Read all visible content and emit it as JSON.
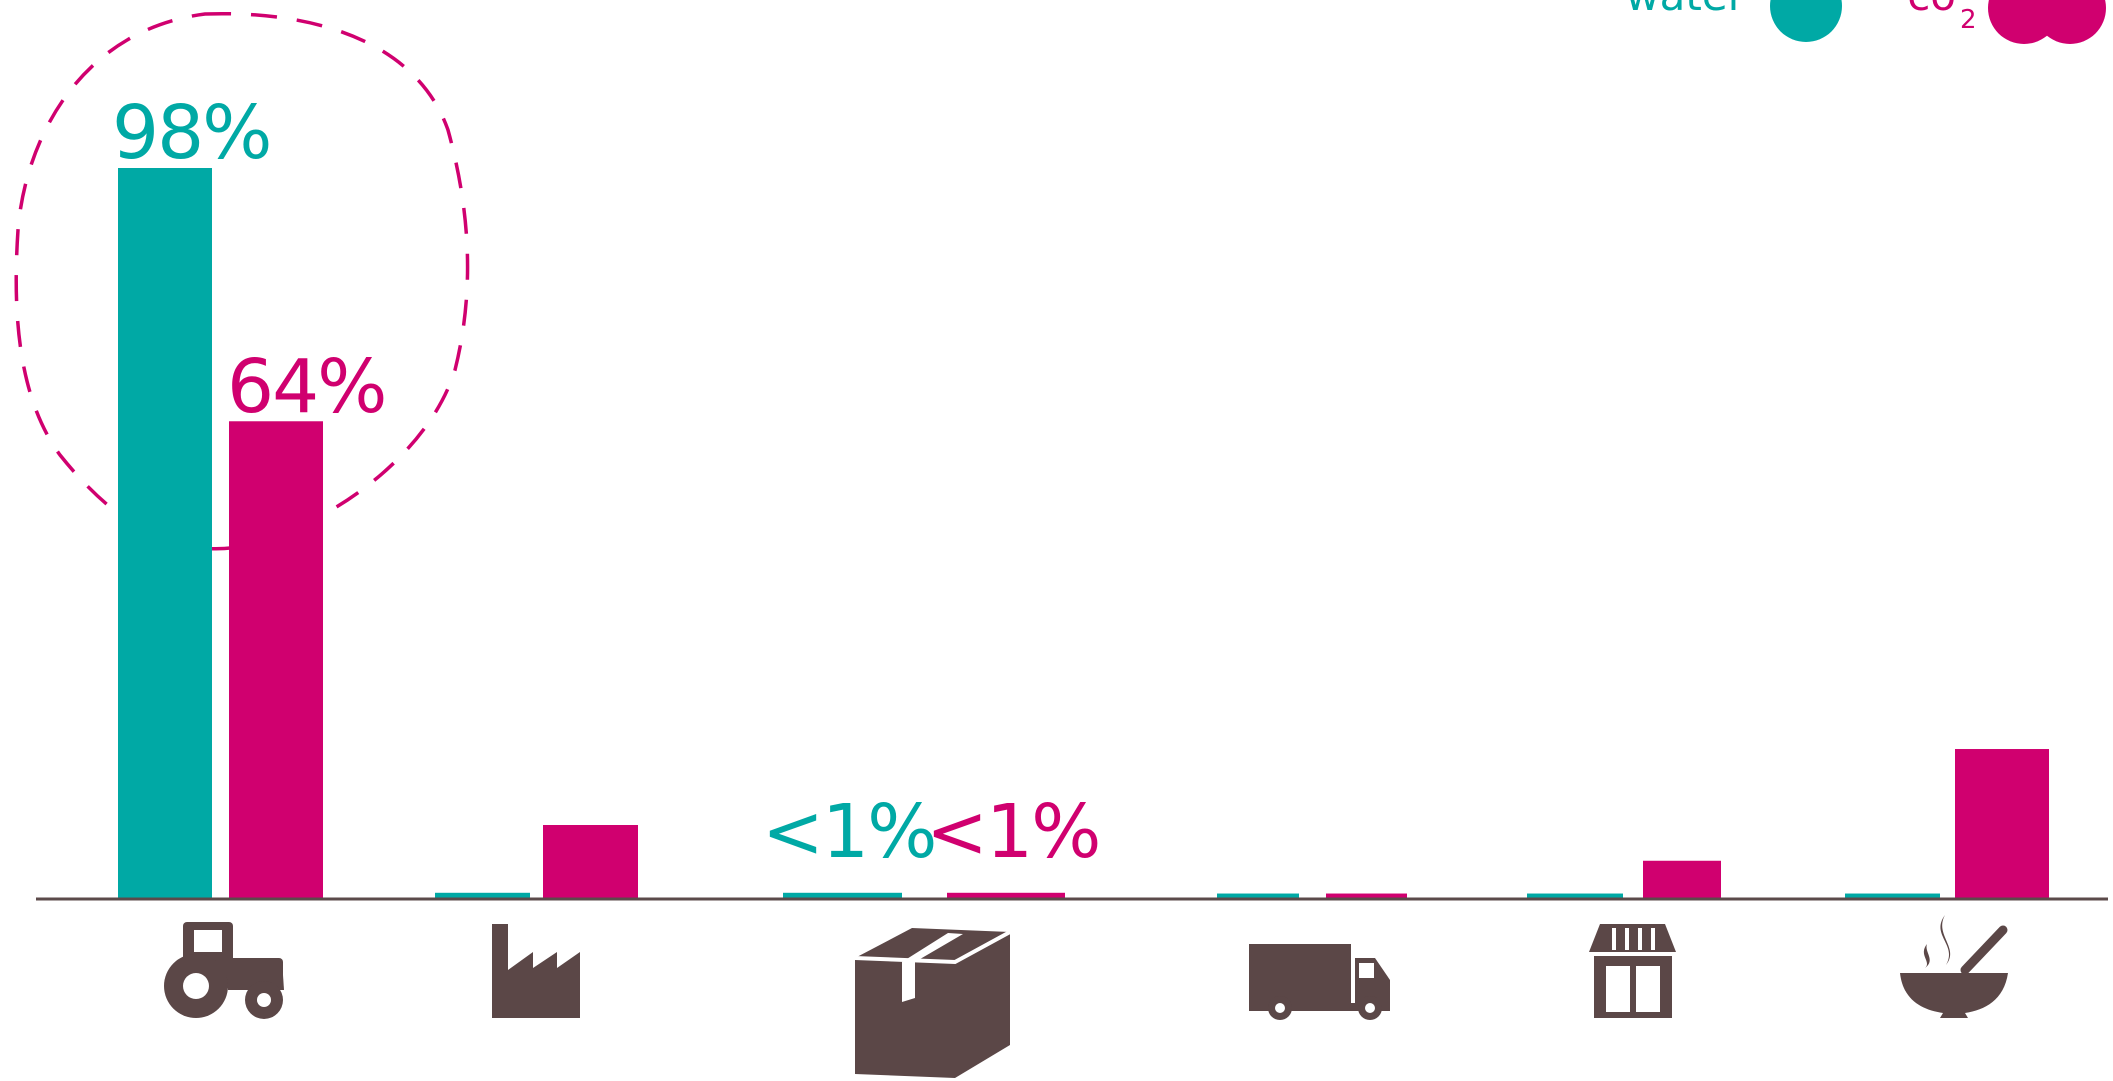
{
  "colors": {
    "water": "#00a9a5",
    "co2": "#d0006f",
    "axis": "#5b4a4a",
    "icon": "#5b4747"
  },
  "legend": {
    "water_label": "water",
    "co2_label": "co",
    "co2_sub": "2"
  },
  "chart_data": {
    "type": "bar",
    "categories": [
      "farm-tractor-icon",
      "factory-icon",
      "package-box-icon",
      "delivery-truck-icon",
      "store-icon",
      "food-bowl-icon"
    ],
    "series": [
      {
        "name": "water",
        "values": [
          98,
          0.7,
          0.7,
          0.6,
          0.6,
          0.6
        ],
        "labels": [
          "98%",
          "",
          "<1%",
          "",
          "",
          ""
        ]
      },
      {
        "name": "co2",
        "values": [
          64,
          9.8,
          0.7,
          0.6,
          5,
          20
        ],
        "labels": [
          "64%",
          "",
          "<1%",
          "",
          "",
          ""
        ]
      }
    ],
    "ylim": [
      0,
      100
    ],
    "grid": false,
    "highlight": "dashed-circle-around-first-category",
    "legend_position": "top-right"
  }
}
